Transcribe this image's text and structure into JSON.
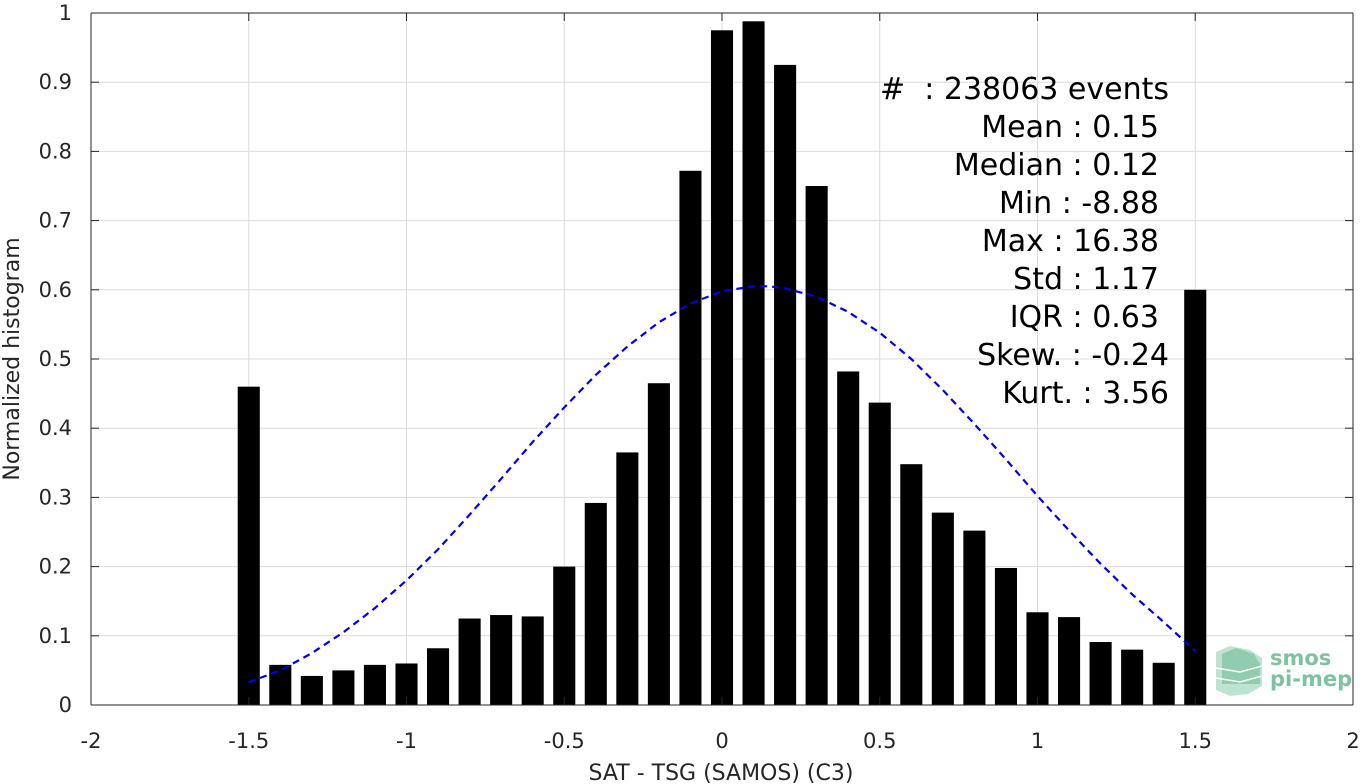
{
  "chart_data": {
    "type": "bar",
    "xlabel": "SAT - TSG (SAMOS) (C3)",
    "ylabel": "Normalized histogram",
    "xlim": [
      -2,
      2
    ],
    "ylim": [
      0,
      1
    ],
    "xticks": [
      -2,
      -1.5,
      -1,
      -0.5,
      0,
      0.5,
      1,
      1.5,
      2
    ],
    "xtick_labels": [
      "-2",
      "-1.5",
      "-1",
      "-0.5",
      "0",
      "0.5",
      "1",
      "1.5",
      "2"
    ],
    "yticks": [
      0,
      0.1,
      0.2,
      0.3,
      0.4,
      0.5,
      0.6,
      0.7,
      0.8,
      0.9,
      1
    ],
    "ytick_labels": [
      "0",
      "0.1",
      "0.2",
      "0.3",
      "0.4",
      "0.5",
      "0.6",
      "0.7",
      "0.8",
      "0.9",
      "1"
    ],
    "grid": true,
    "bar_color": "#000000",
    "bins": [
      {
        "x": -1.5,
        "y": 0.46
      },
      {
        "x": -1.4,
        "y": 0.058
      },
      {
        "x": -1.3,
        "y": 0.042
      },
      {
        "x": -1.2,
        "y": 0.05
      },
      {
        "x": -1.1,
        "y": 0.058
      },
      {
        "x": -1.0,
        "y": 0.06
      },
      {
        "x": -0.9,
        "y": 0.082
      },
      {
        "x": -0.8,
        "y": 0.125
      },
      {
        "x": -0.7,
        "y": 0.13
      },
      {
        "x": -0.6,
        "y": 0.128
      },
      {
        "x": -0.5,
        "y": 0.2
      },
      {
        "x": -0.4,
        "y": 0.292
      },
      {
        "x": -0.3,
        "y": 0.365
      },
      {
        "x": -0.2,
        "y": 0.465
      },
      {
        "x": -0.1,
        "y": 0.772
      },
      {
        "x": 0.0,
        "y": 0.975
      },
      {
        "x": 0.1,
        "y": 0.988
      },
      {
        "x": 0.2,
        "y": 0.925
      },
      {
        "x": 0.3,
        "y": 0.75
      },
      {
        "x": 0.4,
        "y": 0.482
      },
      {
        "x": 0.5,
        "y": 0.437
      },
      {
        "x": 0.6,
        "y": 0.348
      },
      {
        "x": 0.7,
        "y": 0.278
      },
      {
        "x": 0.8,
        "y": 0.252
      },
      {
        "x": 0.9,
        "y": 0.198
      },
      {
        "x": 1.0,
        "y": 0.134
      },
      {
        "x": 1.1,
        "y": 0.127
      },
      {
        "x": 1.2,
        "y": 0.091
      },
      {
        "x": 1.3,
        "y": 0.08
      },
      {
        "x": 1.4,
        "y": 0.061
      },
      {
        "x": 1.5,
        "y": 0.6
      }
    ],
    "fit_curve": {
      "style": "dashed",
      "color": "#0000ee",
      "points": [
        [
          -1.5,
          0.033
        ],
        [
          -1.4,
          0.05
        ],
        [
          -1.3,
          0.075
        ],
        [
          -1.2,
          0.105
        ],
        [
          -1.1,
          0.14
        ],
        [
          -1.0,
          0.18
        ],
        [
          -0.9,
          0.225
        ],
        [
          -0.8,
          0.275
        ],
        [
          -0.7,
          0.327
        ],
        [
          -0.6,
          0.38
        ],
        [
          -0.5,
          0.43
        ],
        [
          -0.4,
          0.477
        ],
        [
          -0.3,
          0.518
        ],
        [
          -0.2,
          0.553
        ],
        [
          -0.1,
          0.58
        ],
        [
          0.0,
          0.598
        ],
        [
          0.1,
          0.605
        ],
        [
          0.15,
          0.605
        ],
        [
          0.2,
          0.602
        ],
        [
          0.3,
          0.59
        ],
        [
          0.4,
          0.568
        ],
        [
          0.5,
          0.538
        ],
        [
          0.6,
          0.5
        ],
        [
          0.7,
          0.455
        ],
        [
          0.8,
          0.406
        ],
        [
          0.9,
          0.355
        ],
        [
          1.0,
          0.302
        ],
        [
          1.1,
          0.252
        ],
        [
          1.2,
          0.204
        ],
        [
          1.3,
          0.16
        ],
        [
          1.4,
          0.12
        ],
        [
          1.5,
          0.078
        ]
      ]
    },
    "stats": [
      "#  : 238063 events",
      "Mean : 0.15",
      "Median : 0.12",
      "Min : -8.88",
      "Max : 16.38",
      "Std : 1.17",
      "IQR : 0.63",
      "Skew. : -0.24",
      "Kurt. : 3.56"
    ]
  },
  "logo": {
    "line1": "smos",
    "line2": "pi-mep",
    "color": "#7cc3a0"
  }
}
